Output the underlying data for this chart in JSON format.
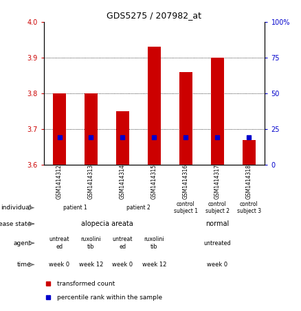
{
  "title": "GDS5275 / 207982_at",
  "samples": [
    "GSM1414312",
    "GSM1414313",
    "GSM1414314",
    "GSM1414315",
    "GSM1414316",
    "GSM1414317",
    "GSM1414318"
  ],
  "transformed_count": [
    3.8,
    3.8,
    3.75,
    3.93,
    3.86,
    3.9,
    3.67
  ],
  "percentile_pct": [
    19,
    19,
    19,
    19,
    19,
    19,
    19
  ],
  "bar_color": "#cc0000",
  "blue_color": "#0000cc",
  "ylim_left": [
    3.6,
    4.0
  ],
  "ylim_right": [
    0,
    100
  ],
  "yticks_left": [
    3.6,
    3.7,
    3.8,
    3.9,
    4.0
  ],
  "yticks_right": [
    0,
    25,
    50,
    75,
    100
  ],
  "grid_values": [
    3.7,
    3.8,
    3.9
  ],
  "individual_data": [
    {
      "label": "patient 1",
      "span": [
        0,
        2
      ],
      "color": "#99ee99"
    },
    {
      "label": "patient 2",
      "span": [
        2,
        4
      ],
      "color": "#99ee99"
    },
    {
      "label": "control\nsubject 1",
      "span": [
        4,
        5
      ],
      "color": "#77cc77"
    },
    {
      "label": "control\nsubject 2",
      "span": [
        5,
        6
      ],
      "color": "#77cc77"
    },
    {
      "label": "control\nsubject 3",
      "span": [
        6,
        7
      ],
      "color": "#77cc77"
    }
  ],
  "disease_data": [
    {
      "label": "alopecia areata",
      "span": [
        0,
        4
      ],
      "color": "#8899ee"
    },
    {
      "label": "normal",
      "span": [
        4,
        7
      ],
      "color": "#88ccee"
    }
  ],
  "agent_data": [
    {
      "label": "untreat\ned",
      "span": [
        0,
        1
      ],
      "color": "#ee88ee"
    },
    {
      "label": "ruxolini\ntib",
      "span": [
        1,
        2
      ],
      "color": "#ffaaff"
    },
    {
      "label": "untreat\ned",
      "span": [
        2,
        3
      ],
      "color": "#ee88ee"
    },
    {
      "label": "ruxolini\ntib",
      "span": [
        3,
        4
      ],
      "color": "#ffaaff"
    },
    {
      "label": "untreated",
      "span": [
        4,
        7
      ],
      "color": "#ee88ee"
    }
  ],
  "time_data": [
    {
      "label": "week 0",
      "span": [
        0,
        1
      ],
      "color": "#f0c070"
    },
    {
      "label": "week 12",
      "span": [
        1,
        2
      ],
      "color": "#ddaa55"
    },
    {
      "label": "week 0",
      "span": [
        2,
        3
      ],
      "color": "#f0c070"
    },
    {
      "label": "week 12",
      "span": [
        3,
        4
      ],
      "color": "#ddaa55"
    },
    {
      "label": "week 0",
      "span": [
        4,
        7
      ],
      "color": "#f0c070"
    }
  ],
  "legend_text1": "transformed count",
  "legend_text2": "percentile rank within the sample",
  "row_labels": {
    "individual": "individual",
    "disease": "disease state",
    "agent": "agent",
    "time": "time"
  }
}
